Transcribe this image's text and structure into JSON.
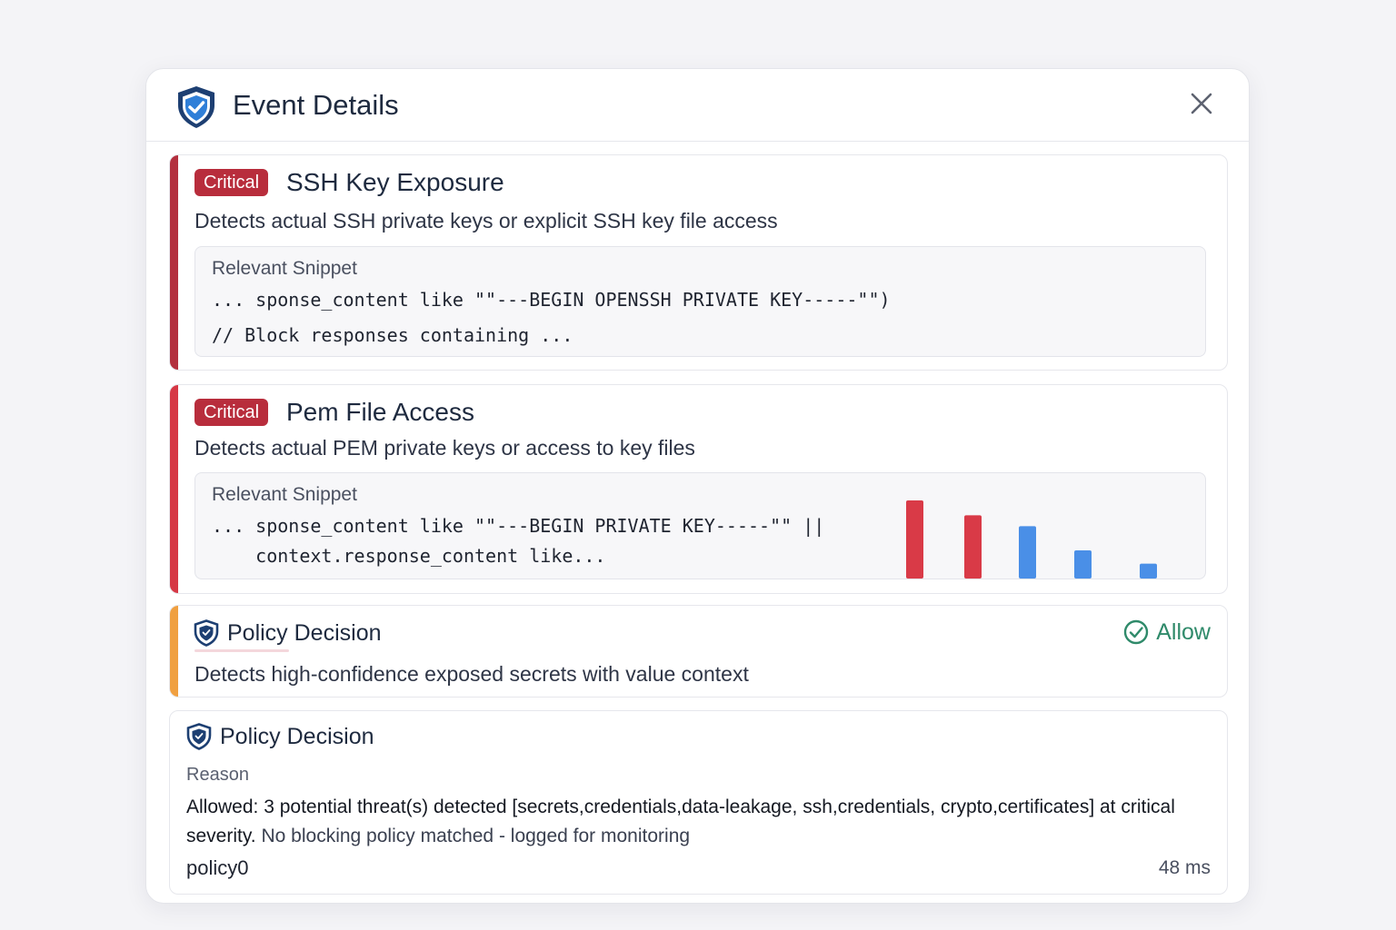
{
  "modal": {
    "title": "Event Details",
    "header_icon": "shield-icon",
    "close_icon": "close-icon"
  },
  "rules": [
    {
      "badge": "Critical",
      "title": "SSH Key Exposure",
      "description": "Detects actual SSH private keys or explicit SSH key file access",
      "snippet_label": "Relevant Snippet",
      "snippet_lines": [
        "... sponse_content like \"\"---BEGIN OPENSSH PRIVATE KEY-----\"\")",
        "// Block responses containing ..."
      ],
      "accent_color": "#b3303e"
    },
    {
      "badge": "Critical",
      "title": "Pem File Access",
      "description": "Detects actual PEM private keys or access to key files",
      "snippet_label": "Relevant Snippet",
      "snippet_lines": [
        "... sponse_content like \"\"---BEGIN PRIVATE KEY-----\"\" ||",
        "    context.response_content like..."
      ],
      "accent_color": "#d63845"
    }
  ],
  "chart_data": {
    "type": "bar",
    "values": [
      100,
      81,
      67,
      36,
      19
    ],
    "colors": [
      "#d93a47",
      "#d93a47",
      "#4a8fe7",
      "#4a8fe7",
      "#4a8fe7"
    ],
    "ylim": [
      0,
      100
    ]
  },
  "policy_decision": {
    "title": "Policy Decision",
    "description": "Detects high-confidence exposed secrets with value context",
    "status": "Allow",
    "status_color": "#2f8a6a",
    "accent_color": "#f0a040"
  },
  "policy_summary": {
    "title": "Policy Decision",
    "reason_label": "Reason",
    "reason_strong": "Allowed: 3 potential threat(s) detected [secrets,credentials,data-leakage, ssh,credentials, crypto,certificates] at critical severity.",
    "reason_muted": "No blocking policy matched - logged for monitoring",
    "policy_id": "policy0",
    "latency": "48 ms"
  }
}
